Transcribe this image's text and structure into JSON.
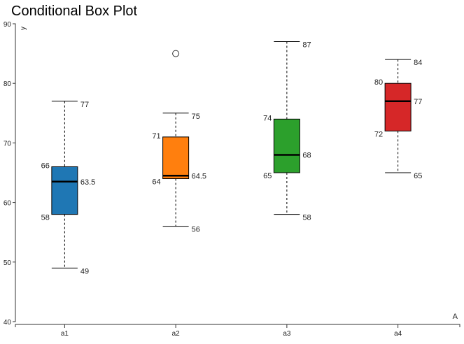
{
  "chart_data": {
    "type": "boxplot",
    "title": "Conditional Box Plot",
    "xlabel": "A",
    "ylabel": "y",
    "ylim": [
      40,
      90
    ],
    "yticks": [
      40,
      50,
      60,
      70,
      80,
      90
    ],
    "categories": [
      "a1",
      "a2",
      "a3",
      "a4"
    ],
    "grid": false,
    "boxes": [
      {
        "category": "a1",
        "min": 49,
        "q1": 58,
        "median": 63.5,
        "q3": 66,
        "max": 77,
        "outliers": [],
        "color": "#1f77b4"
      },
      {
        "category": "a2",
        "min": 56,
        "q1": 64,
        "median": 64.5,
        "q3": 71,
        "max": 75,
        "outliers": [
          85
        ],
        "color": "#ff7f0e"
      },
      {
        "category": "a3",
        "min": 58,
        "q1": 65,
        "median": 68,
        "q3": 74,
        "max": 87,
        "outliers": [],
        "color": "#2ca02c"
      },
      {
        "category": "a4",
        "min": 65,
        "q1": 72,
        "median": 77,
        "q3": 80,
        "max": 84,
        "outliers": [],
        "color": "#d62728"
      }
    ]
  }
}
